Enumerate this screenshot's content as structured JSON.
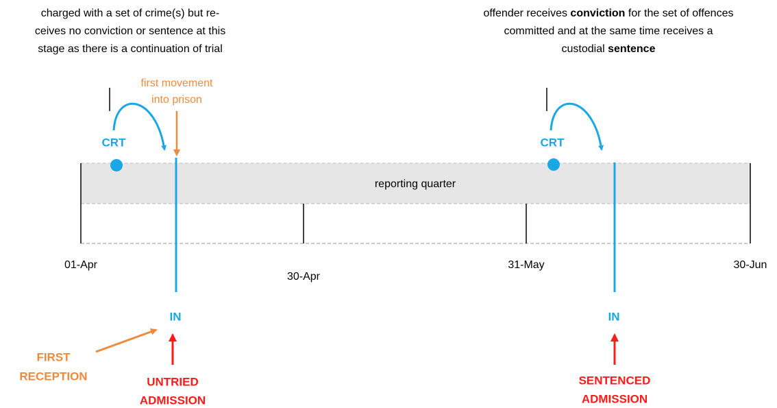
{
  "note_left": {
    "lines": [
      "charged with a set of crime(s) but re-",
      "ceives no conviction or sentence at this",
      "stage as there is a  continuation of trial"
    ]
  },
  "note_right": {
    "line1": [
      "offender receives ",
      "conviction",
      " for the set of offences"
    ],
    "line2": "committed and at the same time receives a",
    "line3": [
      "custodial ",
      "sentence"
    ]
  },
  "first_movement": [
    "first movement",
    "into prison"
  ],
  "court_labels": [
    "CRT",
    "CRT"
  ],
  "band_label": "reporting quarter",
  "dates": [
    "01-Apr",
    "30-Apr",
    "31-May",
    "30-Jun"
  ],
  "in_labels": [
    "IN",
    "IN"
  ],
  "first_reception": [
    "FIRST",
    "RECEPTION"
  ],
  "untried_admission": [
    "UNTRIED",
    "ADMISSION"
  ],
  "sentenced_admission": [
    "SENTENCED",
    "ADMISSION"
  ]
}
